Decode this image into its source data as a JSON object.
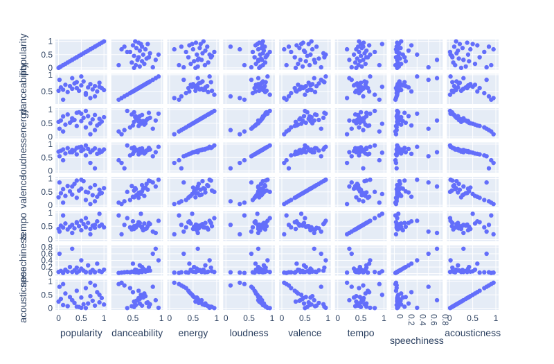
{
  "chart_data": {
    "type": "scatter",
    "subtype": "scatter-matrix",
    "title": "",
    "dimensions": [
      "popularity",
      "danceability",
      "energy",
      "loudness",
      "valence",
      "tempo",
      "speechiness",
      "acousticness"
    ],
    "axis_ranges": {
      "popularity": [
        -0.07,
        1.07
      ],
      "danceability": [
        0.12,
        1.03
      ],
      "energy": [
        -0.05,
        1.05
      ],
      "loudness": [
        -0.06,
        1.06
      ],
      "valence": [
        -0.06,
        1.06
      ],
      "tempo": [
        -0.06,
        1.06
      ],
      "speechiness": [
        -0.06,
        0.85
      ],
      "acousticness": [
        -0.06,
        1.06
      ]
    },
    "ticks": {
      "popularity": [
        0,
        0.5,
        1
      ],
      "danceability": [
        0.5,
        1
      ],
      "energy": [
        0,
        0.5,
        1
      ],
      "loudness": [
        0,
        0.5,
        1
      ],
      "valence": [
        0,
        0.5,
        1
      ],
      "tempo": [
        0,
        0.5,
        1
      ],
      "speechiness": [
        0,
        0.2,
        0.4,
        0.6,
        0.8
      ],
      "acousticness": [
        0,
        0.5,
        1
      ]
    },
    "tick_labels": {
      "popularity": [
        "0",
        "0.5",
        "1"
      ],
      "danceability": [
        "0.5",
        "1"
      ],
      "energy": [
        "0",
        "0.5",
        "1"
      ],
      "loudness": [
        "0",
        "0.5",
        "1"
      ],
      "valence": [
        "0",
        "0.5",
        "1"
      ],
      "tempo": [
        "0",
        "0.5",
        "1"
      ],
      "speechiness": [
        "0",
        "0.2",
        "0.4",
        "0.6",
        "0.8"
      ],
      "acousticness": [
        "0",
        "0.5",
        "1"
      ]
    },
    "marker_color": "#636efa",
    "background_color": "#e5ecf6",
    "grid": true,
    "legend": "none",
    "sample_points": [
      [
        0.0,
        0.52,
        0.55,
        0.72,
        0.3,
        0.4,
        0.05,
        0.25
      ],
      [
        0.05,
        0.62,
        0.6,
        0.75,
        0.45,
        0.52,
        0.08,
        0.35
      ],
      [
        0.1,
        0.55,
        0.75,
        0.8,
        0.6,
        0.45,
        0.04,
        0.12
      ],
      [
        0.15,
        0.7,
        0.45,
        0.65,
        0.35,
        0.6,
        0.12,
        0.55
      ],
      [
        0.2,
        0.48,
        0.82,
        0.85,
        0.72,
        0.38,
        0.06,
        0.08
      ],
      [
        0.25,
        0.66,
        0.52,
        0.7,
        0.52,
        0.48,
        0.2,
        0.42
      ],
      [
        0.3,
        0.58,
        0.68,
        0.78,
        0.4,
        0.55,
        0.05,
        0.3
      ],
      [
        0.35,
        0.74,
        0.62,
        0.76,
        0.8,
        0.42,
        0.1,
        0.2
      ],
      [
        0.4,
        0.6,
        0.4,
        0.62,
        0.28,
        0.65,
        0.03,
        0.65
      ],
      [
        0.45,
        0.52,
        0.9,
        0.88,
        0.55,
        0.5,
        0.07,
        0.05
      ],
      [
        0.5,
        0.68,
        0.58,
        0.74,
        0.62,
        0.35,
        0.15,
        0.4
      ],
      [
        0.55,
        0.8,
        0.7,
        0.8,
        0.9,
        0.58,
        0.09,
        0.15
      ],
      [
        0.6,
        0.45,
        0.35,
        0.58,
        0.2,
        0.46,
        0.04,
        0.75
      ],
      [
        0.65,
        0.62,
        0.76,
        0.82,
        0.48,
        0.62,
        0.25,
        0.18
      ],
      [
        0.7,
        0.72,
        0.5,
        0.7,
        0.66,
        0.4,
        0.06,
        0.45
      ],
      [
        0.75,
        0.56,
        0.64,
        0.77,
        0.38,
        0.52,
        0.11,
        0.28
      ],
      [
        0.8,
        0.66,
        0.8,
        0.84,
        0.75,
        0.44,
        0.05,
        0.1
      ],
      [
        0.85,
        0.5,
        0.42,
        0.64,
        0.32,
        0.68,
        0.3,
        0.6
      ],
      [
        0.9,
        0.76,
        0.66,
        0.78,
        0.58,
        0.5,
        0.08,
        0.22
      ],
      [
        0.95,
        0.6,
        0.56,
        0.72,
        0.46,
        0.56,
        0.05,
        0.38
      ],
      [
        1.0,
        0.54,
        0.72,
        0.8,
        0.64,
        0.46,
        0.12,
        0.14
      ],
      [
        0.02,
        0.85,
        0.3,
        0.55,
        0.85,
        0.3,
        0.6,
        0.8
      ],
      [
        0.5,
        0.95,
        0.85,
        0.9,
        0.95,
        0.7,
        0.4,
        0.02
      ],
      [
        0.7,
        0.3,
        0.1,
        0.3,
        0.05,
        0.2,
        0.03,
        0.95
      ],
      [
        0.1,
        0.25,
        0.2,
        0.4,
        0.1,
        0.9,
        0.02,
        0.9
      ],
      [
        0.6,
        0.4,
        0.95,
        0.95,
        0.5,
        0.8,
        0.05,
        0.01
      ],
      [
        0.3,
        0.9,
        0.6,
        0.7,
        0.7,
        0.25,
        0.75,
        0.3
      ],
      [
        0.8,
        0.35,
        0.25,
        0.1,
        0.15,
        0.55,
        0.04,
        0.85
      ],
      [
        0.4,
        0.78,
        0.88,
        0.86,
        0.92,
        0.62,
        0.18,
        0.06
      ],
      [
        0.9,
        0.64,
        0.48,
        0.68,
        0.42,
        0.96,
        0.07,
        0.5
      ]
    ]
  }
}
